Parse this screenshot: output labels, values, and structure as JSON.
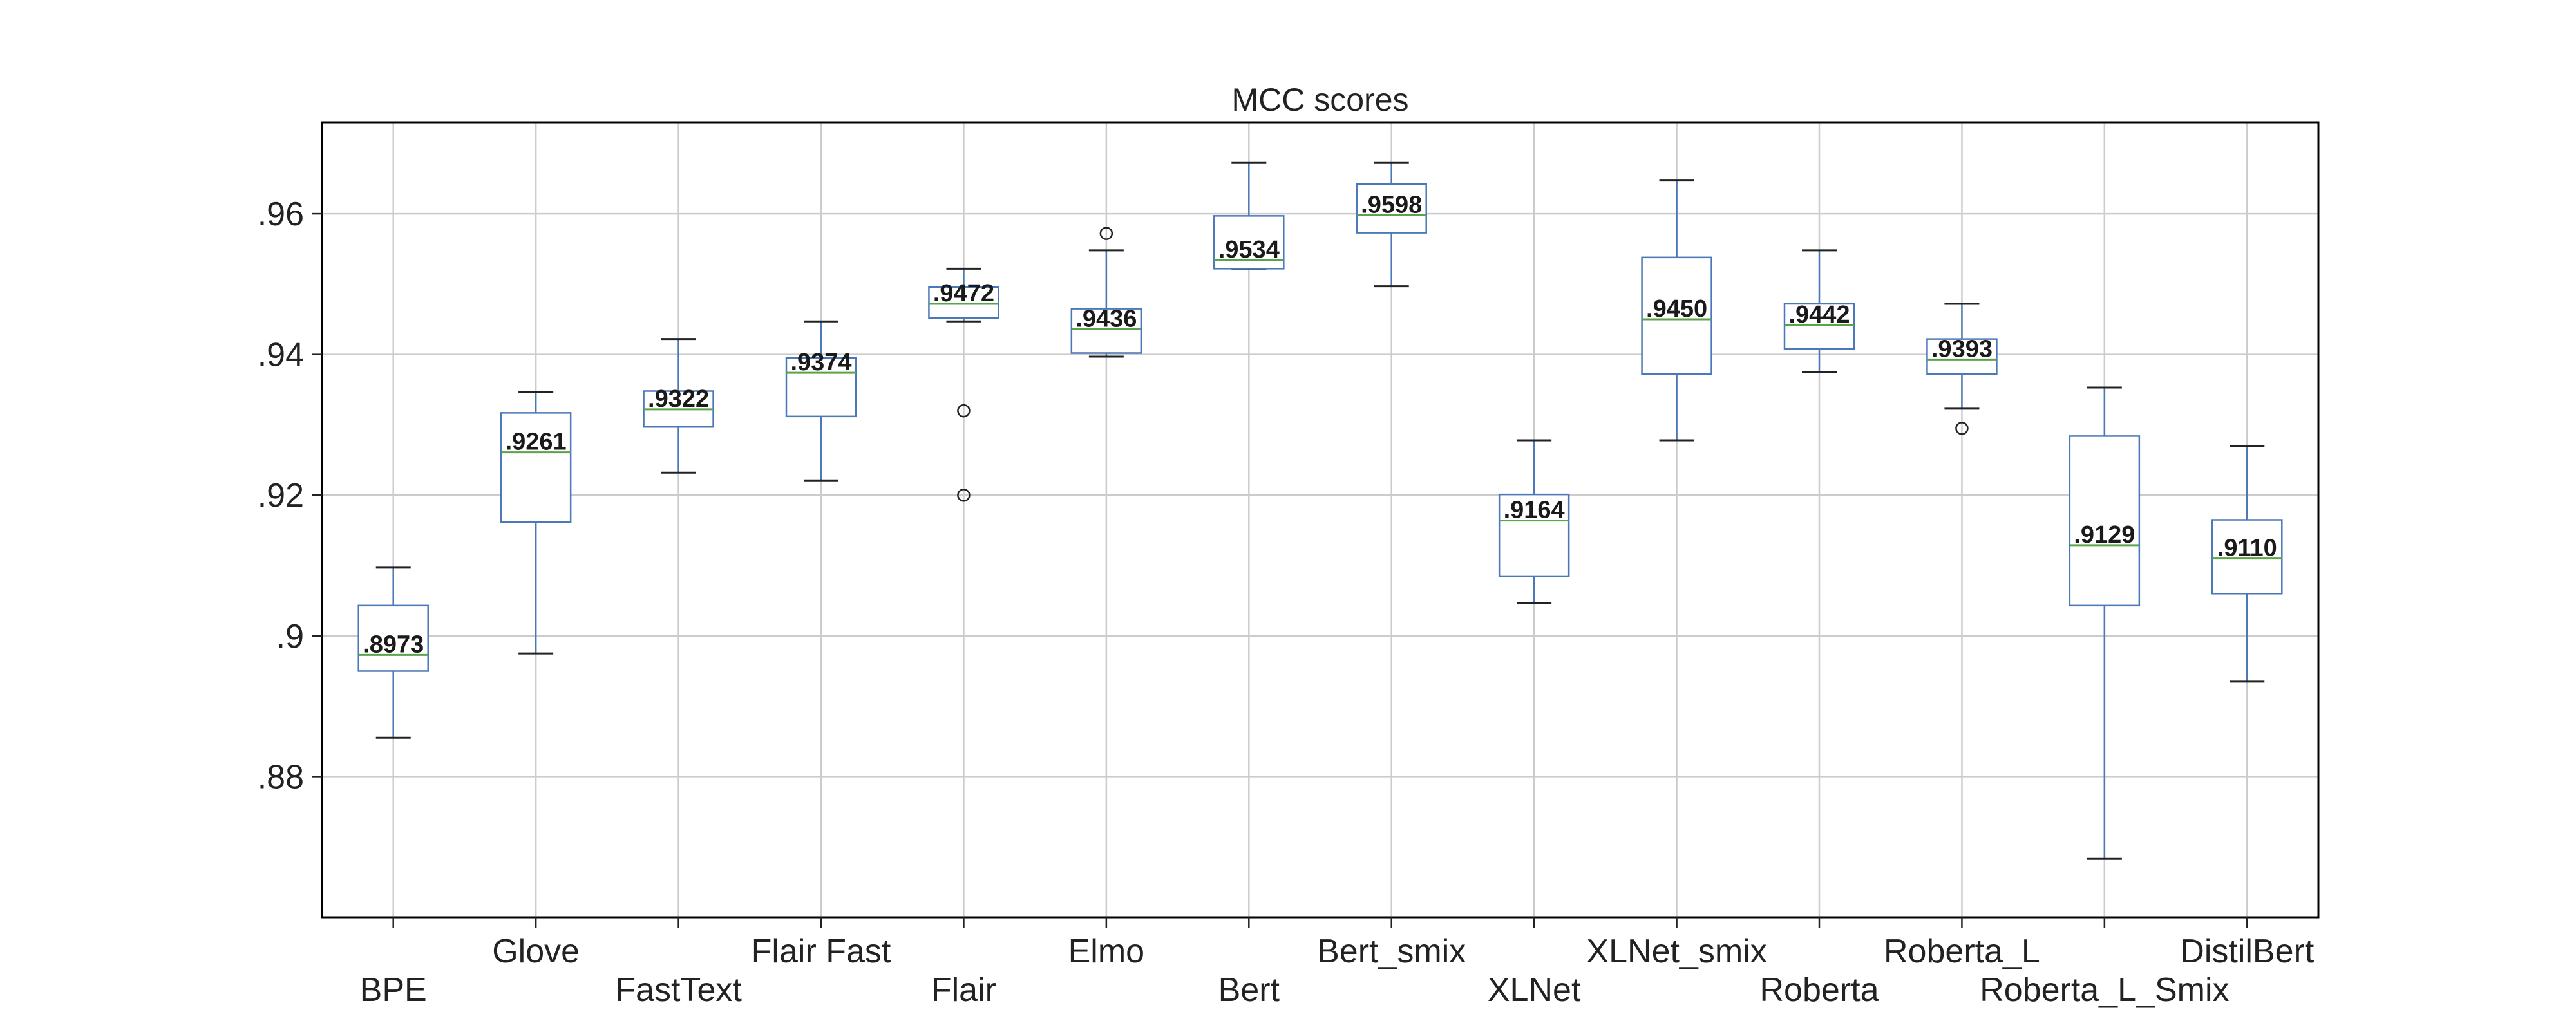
{
  "chart_data": {
    "type": "box",
    "title": "MCC scores",
    "xlabel": "",
    "ylabel": "",
    "ylim": [
      0.86,
      0.973
    ],
    "yticks": [
      0.88,
      0.9,
      0.92,
      0.94,
      0.96
    ],
    "ytick_labels": [
      ".88",
      ".9",
      ".92",
      ".94",
      ".96"
    ],
    "grid": true,
    "colors": {
      "box": "#4a78b8",
      "median": "#5aa34a",
      "whisker": "#222222",
      "grid": "#cccccc",
      "frame": "#000000"
    },
    "categories": [
      "BPE",
      "Glove",
      "FastText",
      "Flair Fast",
      "Flair",
      "Elmo",
      "Bert",
      "Bert_smix",
      "XLNet",
      "XLNet_smix",
      "Roberta",
      "Roberta_L",
      "Roberta_L_Smix",
      "DistilBert"
    ],
    "boxes": [
      {
        "name": "BPE",
        "whislo": 0.8855,
        "q1": 0.895,
        "med": 0.8973,
        "q3": 0.9043,
        "whishi": 0.9097,
        "fliers": [],
        "label": ".8973"
      },
      {
        "name": "Glove",
        "whislo": 0.8975,
        "q1": 0.9162,
        "med": 0.9261,
        "q3": 0.9317,
        "whishi": 0.9347,
        "fliers": [],
        "label": ".9261"
      },
      {
        "name": "FastText",
        "whislo": 0.9232,
        "q1": 0.9297,
        "med": 0.9322,
        "q3": 0.9348,
        "whishi": 0.9422,
        "fliers": [],
        "label": ".9322"
      },
      {
        "name": "Flair Fast",
        "whislo": 0.9221,
        "q1": 0.9312,
        "med": 0.9374,
        "q3": 0.9395,
        "whishi": 0.9447,
        "fliers": [],
        "label": ".9374"
      },
      {
        "name": "Flair",
        "whislo": 0.9447,
        "q1": 0.9452,
        "med": 0.9472,
        "q3": 0.9496,
        "whishi": 0.9522,
        "fliers": [
          0.932,
          0.92
        ],
        "label": ".9472"
      },
      {
        "name": "Elmo",
        "whislo": 0.9397,
        "q1": 0.9402,
        "med": 0.9436,
        "q3": 0.9465,
        "whishi": 0.9548,
        "fliers": [
          0.9572
        ],
        "label": ".9436"
      },
      {
        "name": "Bert",
        "whislo": 0.9522,
        "q1": 0.9522,
        "med": 0.9534,
        "q3": 0.9597,
        "whishi": 0.9673,
        "fliers": [],
        "label": ".9534"
      },
      {
        "name": "Bert_smix",
        "whislo": 0.9497,
        "q1": 0.9573,
        "med": 0.9598,
        "q3": 0.9642,
        "whishi": 0.9673,
        "fliers": [],
        "label": ".9598"
      },
      {
        "name": "XLNet",
        "whislo": 0.9047,
        "q1": 0.9085,
        "med": 0.9164,
        "q3": 0.9201,
        "whishi": 0.9278,
        "fliers": [],
        "label": ".9164"
      },
      {
        "name": "XLNet_smix",
        "whislo": 0.9278,
        "q1": 0.9372,
        "med": 0.945,
        "q3": 0.9538,
        "whishi": 0.9648,
        "fliers": [],
        "label": ".9450"
      },
      {
        "name": "Roberta",
        "whislo": 0.9375,
        "q1": 0.9408,
        "med": 0.9442,
        "q3": 0.9472,
        "whishi": 0.9548,
        "fliers": [],
        "label": ".9442"
      },
      {
        "name": "Roberta_L",
        "whislo": 0.9323,
        "q1": 0.9372,
        "med": 0.9393,
        "q3": 0.9422,
        "whishi": 0.9472,
        "fliers": [
          0.9295
        ],
        "label": ".9393"
      },
      {
        "name": "Roberta_L_Smix",
        "whislo": 0.8683,
        "q1": 0.9043,
        "med": 0.9129,
        "q3": 0.9284,
        "whishi": 0.9353,
        "fliers": [],
        "label": ".9129"
      },
      {
        "name": "DistilBert",
        "whislo": 0.8935,
        "q1": 0.906,
        "med": 0.911,
        "q3": 0.9165,
        "whishi": 0.927,
        "fliers": [],
        "label": ".9110"
      }
    ]
  }
}
